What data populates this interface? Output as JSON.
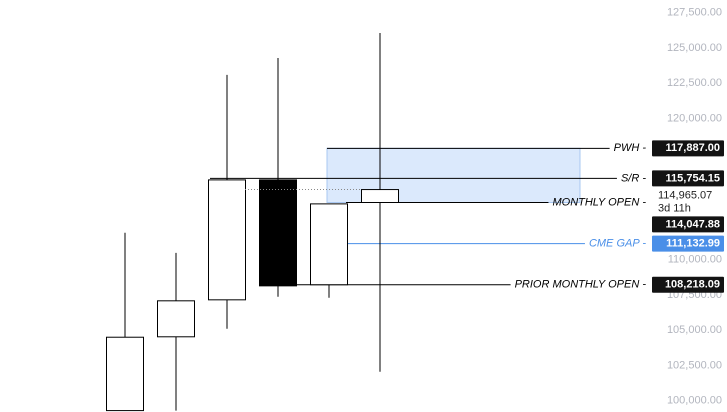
{
  "chart_data": {
    "type": "candlestick",
    "ylim": [
      99200,
      128400
    ],
    "yticks": [
      {
        "value": 127500,
        "label": "127,500.00"
      },
      {
        "value": 125000,
        "label": "125,000.00"
      },
      {
        "value": 122500,
        "label": "122,500.00"
      },
      {
        "value": 120000,
        "label": "120,000.00"
      },
      {
        "value": 110000,
        "label": "110,000.00"
      },
      {
        "value": 107500,
        "label": "107,500.00"
      },
      {
        "value": 105000,
        "label": "105,000.00"
      },
      {
        "value": 102500,
        "label": "102,500.00"
      },
      {
        "value": 100000,
        "label": "100,000.00"
      }
    ],
    "candles": [
      {
        "open": 99300,
        "high": 111900,
        "low": 99300,
        "close": 104500
      },
      {
        "open": 104530,
        "high": 110480,
        "low": 99300,
        "close": 107080
      },
      {
        "open": 107150,
        "high": 123090,
        "low": 105100,
        "close": 115650
      },
      {
        "open": 115650,
        "high": 124290,
        "low": 107370,
        "close": 108140
      },
      {
        "open": 108220,
        "high": 113950,
        "low": 107300,
        "close": 113950
      },
      {
        "open": 114048,
        "high": 126060,
        "low": 102050,
        "close": 114965
      }
    ],
    "up_color": "#ffffff",
    "down_color": "#000000",
    "zone": {
      "top": 117887,
      "bottom": 114047.88,
      "color": "#dbe9fc"
    },
    "levels": [
      {
        "name": "PWH -",
        "value": 117887,
        "value_label": "117,887.00",
        "color": "#000000"
      },
      {
        "name": "S/R -",
        "value": 115754.15,
        "value_label": "115,754.15",
        "color": "#000000"
      },
      {
        "name": "MONTHLY OPEN -",
        "value": 114047.88,
        "value_label": "114,047.88",
        "color": "#000000"
      },
      {
        "name": "CME GAP -",
        "value": 111132.99,
        "value_label": "111,132.99",
        "color": "#4a8fe8"
      },
      {
        "name": "PRIOR MONTHLY OPEN -",
        "value": 108218.09,
        "value_label": "108,218.09",
        "color": "#000000"
      }
    ],
    "current_price": {
      "value": 114965.07,
      "label": "114,965.07",
      "countdown": "3d 11h"
    }
  }
}
